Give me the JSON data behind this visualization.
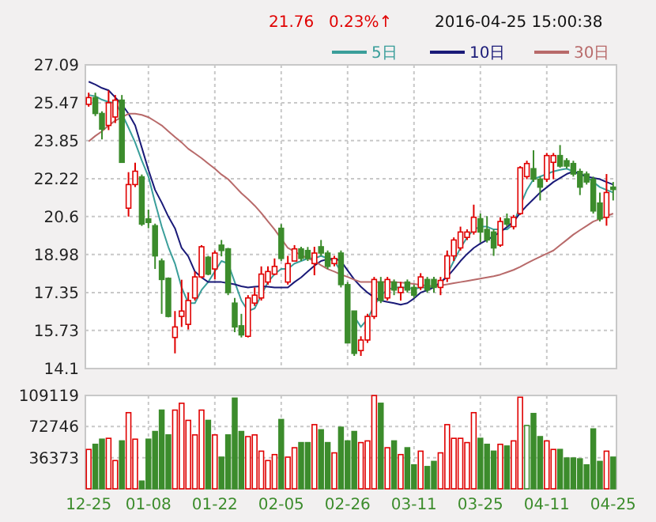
{
  "chart_data": [
    {
      "type": "candlestick",
      "annotations": [
        "21.76",
        "0.23%↑",
        "2016-04-25 15:00:38"
      ],
      "categories": [
        null,
        null,
        null,
        null,
        null,
        null,
        null,
        null,
        null,
        null,
        null,
        null,
        null,
        null,
        null,
        null,
        null,
        null,
        null,
        null,
        null,
        null,
        null,
        null,
        null,
        null,
        null,
        null,
        null,
        null,
        null,
        null,
        null,
        null,
        null,
        null,
        null,
        null,
        null,
        null,
        null,
        null,
        null,
        null,
        null,
        null,
        null,
        null,
        null,
        null,
        null,
        null,
        null,
        null,
        null,
        null,
        null,
        null,
        null,
        null,
        null,
        null,
        null,
        null,
        null,
        null,
        null,
        null,
        null,
        null,
        null,
        null,
        null,
        null,
        null,
        null,
        null,
        null,
        null,
        null
      ],
      "ohlc": [
        [
          25.4,
          25.9,
          25.3,
          25.69
        ],
        [
          25.69,
          25.9,
          24.9,
          25.01
        ],
        [
          25.01,
          25.1,
          23.9,
          24.34
        ],
        [
          24.5,
          26.0,
          24.3,
          25.47
        ],
        [
          24.86,
          25.8,
          24.6,
          25.58
        ],
        [
          25.58,
          25.8,
          22.9,
          22.92
        ],
        [
          20.96,
          22.5,
          20.6,
          21.97
        ],
        [
          21.97,
          22.9,
          21.86,
          22.54
        ],
        [
          22.3,
          22.4,
          20.2,
          20.28
        ],
        [
          20.5,
          20.9,
          20.1,
          20.35
        ],
        [
          20.21,
          20.3,
          18.36,
          18.92
        ],
        [
          18.7,
          18.81,
          16.44,
          17.91
        ],
        [
          17.96,
          18.0,
          16.29,
          16.33
        ],
        [
          15.43,
          16.56,
          14.75,
          15.88
        ],
        [
          16.33,
          17.9,
          15.88,
          16.56
        ],
        [
          15.99,
          17.35,
          15.77,
          17.01
        ],
        [
          17.12,
          18.25,
          17.01,
          18.02
        ],
        [
          18.02,
          19.38,
          17.96,
          19.31
        ],
        [
          18.86,
          18.92,
          18.09,
          18.14
        ],
        [
          18.36,
          19.15,
          17.91,
          19.04
        ],
        [
          19.38,
          19.6,
          18.9,
          19.15
        ],
        [
          19.22,
          19.26,
          17.24,
          17.35
        ],
        [
          16.9,
          17.12,
          15.66,
          15.88
        ],
        [
          15.93,
          16.44,
          15.43,
          15.54
        ],
        [
          15.48,
          17.24,
          15.43,
          17.12
        ],
        [
          16.9,
          17.57,
          16.78,
          17.24
        ],
        [
          17.12,
          18.47,
          17.01,
          18.14
        ],
        [
          17.8,
          18.47,
          17.69,
          18.25
        ],
        [
          18.14,
          18.81,
          18.09,
          18.47
        ],
        [
          20.1,
          20.28,
          18.7,
          18.81
        ],
        [
          17.8,
          18.92,
          17.69,
          18.59
        ],
        [
          18.7,
          19.38,
          18.7,
          19.22
        ],
        [
          19.22,
          19.31,
          18.7,
          18.81
        ],
        [
          19.15,
          19.3,
          18.7,
          18.81
        ],
        [
          18.59,
          19.31,
          18.09,
          19.04
        ],
        [
          19.31,
          19.6,
          18.92,
          19.04
        ],
        [
          19.04,
          19.15,
          18.36,
          18.47
        ],
        [
          18.59,
          18.92,
          18.47,
          18.81
        ],
        [
          19.04,
          19.15,
          17.57,
          17.69
        ],
        [
          17.69,
          17.8,
          15.2,
          15.2
        ],
        [
          16.56,
          16.56,
          14.64,
          14.75
        ],
        [
          14.87,
          15.48,
          14.64,
          15.32
        ],
        [
          15.32,
          16.44,
          15.2,
          16.33
        ],
        [
          16.33,
          18.02,
          16.22,
          17.91
        ],
        [
          17.8,
          18.02,
          16.9,
          17.01
        ],
        [
          17.12,
          18.02,
          17.01,
          17.91
        ],
        [
          17.8,
          17.91,
          17.24,
          17.46
        ],
        [
          17.35,
          17.8,
          17.01,
          17.57
        ],
        [
          17.8,
          17.91,
          17.35,
          17.46
        ],
        [
          17.57,
          17.69,
          17.12,
          17.24
        ],
        [
          17.57,
          18.18,
          17.46,
          18.02
        ],
        [
          17.91,
          18.02,
          17.35,
          17.46
        ],
        [
          17.91,
          18.02,
          17.35,
          17.57
        ],
        [
          17.57,
          18.02,
          17.24,
          17.87
        ],
        [
          17.96,
          19.15,
          17.8,
          18.92
        ],
        [
          18.92,
          19.71,
          18.7,
          19.6
        ],
        [
          19.26,
          20.17,
          19.15,
          19.94
        ],
        [
          19.71,
          20.05,
          19.6,
          19.94
        ],
        [
          19.94,
          21.11,
          19.83,
          20.57
        ],
        [
          20.51,
          20.73,
          19.49,
          19.94
        ],
        [
          20.05,
          20.62,
          19.49,
          19.6
        ],
        [
          19.94,
          20.05,
          18.92,
          19.26
        ],
        [
          19.38,
          20.57,
          19.31,
          20.39
        ],
        [
          20.5,
          20.73,
          20.17,
          20.28
        ],
        [
          20.17,
          20.67,
          20.05,
          20.57
        ],
        [
          20.73,
          22.76,
          20.67,
          22.69
        ],
        [
          22.31,
          22.99,
          22.2,
          22.87
        ],
        [
          22.65,
          23.44,
          22.08,
          22.2
        ],
        [
          22.2,
          22.31,
          21.29,
          21.86
        ],
        [
          22.2,
          23.32,
          22.08,
          23.21
        ],
        [
          22.92,
          23.32,
          22.2,
          23.21
        ],
        [
          23.21,
          23.66,
          22.69,
          22.76
        ],
        [
          22.99,
          23.1,
          22.65,
          22.76
        ],
        [
          22.87,
          22.99,
          22.31,
          22.42
        ],
        [
          22.53,
          22.65,
          21.52,
          21.86
        ],
        [
          22.42,
          22.53,
          21.97,
          22.08
        ],
        [
          22.2,
          22.31,
          20.73,
          20.84
        ],
        [
          21.18,
          21.63,
          20.39,
          20.5
        ],
        [
          20.57,
          22.42,
          20.21,
          21.63
        ],
        [
          21.86,
          22.08,
          21.29,
          21.76
        ]
      ],
      "series": [
        {
          "name": "5日",
          "type": "line",
          "color": "#3a9e9a",
          "values": [
            25.8,
            25.75,
            25.6,
            25.5,
            25.47,
            25.0,
            24.4,
            23.77,
            23.0,
            22.31,
            21.2,
            20.17,
            19.3,
            18.59,
            17.57,
            16.9,
            16.9,
            17.46,
            17.8,
            18.25,
            18.7,
            18.59,
            17.8,
            17.01,
            16.56,
            16.67,
            17.24,
            17.8,
            18.14,
            18.36,
            18.36,
            18.59,
            18.7,
            18.81,
            18.81,
            18.92,
            18.81,
            18.7,
            18.25,
            null,
            16.33,
            15.88,
            16.22,
            16.78,
            17.24,
            17.46,
            17.57,
            17.57,
            17.57,
            17.5,
            17.57,
            17.57,
            17.57,
            17.69,
            18.14,
            18.7,
            19.26,
            19.71,
            20.05,
            20.17,
            20.17,
            20.05,
            20.05,
            20.05,
            20.28,
            21.07,
            21.74,
            22.2,
            22.31,
            22.42,
            22.53,
            22.6,
            22.65,
            22.53,
            22.42,
            22.31,
            22.08,
            21.86,
            21.74,
            21.63
          ]
        },
        {
          "name": "10日",
          "type": "line",
          "color": "#1a1a78",
          "values": [
            26.37,
            26.25,
            26.1,
            26.0,
            25.7,
            25.4,
            25.0,
            24.5,
            23.55,
            22.6,
            21.74,
            21.2,
            20.6,
            20.1,
            19.26,
            18.9,
            18.25,
            18.0,
            17.8,
            17.8,
            17.8,
            17.75,
            17.7,
            17.62,
            17.57,
            17.6,
            17.62,
            17.6,
            17.57,
            17.57,
            17.57,
            17.8,
            18.0,
            18.25,
            18.5,
            18.7,
            18.78,
            18.81,
            18.7,
            18.3,
            17.91,
            17.6,
            17.35,
            17.15,
            17.01,
            16.95,
            16.9,
            16.83,
            16.9,
            17.1,
            17.35,
            17.45,
            17.57,
            17.8,
            18.02,
            18.35,
            18.7,
            19.0,
            19.26,
            19.45,
            19.6,
            19.77,
            19.94,
            20.15,
            20.39,
            20.75,
            21.07,
            21.35,
            21.63,
            21.85,
            22.08,
            22.25,
            22.42,
            22.53,
            22.42,
            22.31,
            22.25,
            22.2,
            22.08,
            21.97
          ]
        },
        {
          "name": "30日",
          "type": "line",
          "color": "#b86a6a",
          "values": [
            23.82,
            24.05,
            24.25,
            24.5,
            24.7,
            24.85,
            25.0,
            25.0,
            24.95,
            24.85,
            24.68,
            24.5,
            24.25,
            24.0,
            23.77,
            23.5,
            23.3,
            23.1,
            22.87,
            22.65,
            22.4,
            22.2,
            21.9,
            21.6,
            21.35,
            21.07,
            20.75,
            20.4,
            20.05,
            19.65,
            19.26,
            19.1,
            18.95,
            18.82,
            18.7,
            18.52,
            18.36,
            18.25,
            18.12,
            18.02,
            17.9,
            17.8,
            17.8,
            17.8,
            17.8,
            17.8,
            17.8,
            17.78,
            17.75,
            17.72,
            17.68,
            17.64,
            17.62,
            17.65,
            17.7,
            17.75,
            17.8,
            17.85,
            17.9,
            17.95,
            18.0,
            18.05,
            18.12,
            18.22,
            18.32,
            18.45,
            18.6,
            18.75,
            18.88,
            19.02,
            19.15,
            19.38,
            19.6,
            19.83,
            20.02,
            20.2,
            20.39,
            20.5,
            20.62,
            20.73
          ]
        }
      ],
      "ylim": [
        14.1,
        27.09
      ],
      "yticks": [
        14.1,
        15.73,
        17.35,
        18.98,
        20.6,
        22.22,
        23.85,
        25.47,
        27.09
      ],
      "grid": true,
      "legend": "top right"
    },
    {
      "type": "bar",
      "categories": [
        "12-25",
        null,
        null,
        null,
        null,
        null,
        null,
        null,
        null,
        "01-08",
        null,
        null,
        null,
        null,
        null,
        null,
        null,
        null,
        null,
        "01-22",
        null,
        null,
        null,
        null,
        null,
        null,
        null,
        null,
        null,
        "02-05",
        null,
        null,
        null,
        null,
        null,
        null,
        null,
        null,
        null,
        "02-26",
        null,
        null,
        null,
        null,
        null,
        null,
        null,
        null,
        null,
        "03-11",
        null,
        null,
        null,
        null,
        null,
        null,
        null,
        null,
        null,
        "03-25",
        null,
        null,
        null,
        null,
        null,
        null,
        null,
        null,
        null,
        "04-11",
        null,
        null,
        null,
        null,
        null,
        null,
        null,
        null,
        null,
        "04-25"
      ],
      "values": [
        46000,
        52000,
        58000,
        59000,
        33000,
        56000,
        89000,
        58000,
        9000,
        58000,
        67000,
        92000,
        63000,
        92000,
        100000,
        80000,
        63000,
        92000,
        80000,
        63000,
        37000,
        63000,
        106000,
        67000,
        61000,
        63000,
        44000,
        33000,
        40000,
        81000,
        37000,
        48000,
        54000,
        54000,
        75000,
        69000,
        54000,
        42000,
        72000,
        56000,
        67000,
        54000,
        56000,
        109000,
        100000,
        48000,
        56000,
        40000,
        48000,
        28000,
        44000,
        26000,
        32000,
        42000,
        75000,
        59000,
        59000,
        54000,
        89000,
        59000,
        52000,
        44000,
        52000,
        50000,
        56000,
        107000,
        74000,
        88000,
        61000,
        56000,
        46000,
        46000,
        36000,
        36000,
        35000,
        28000,
        70000,
        32000,
        44000,
        37000
      ],
      "colors": [
        "#e00000",
        "#3c8c2c",
        "#3c8c2c",
        "#e00000",
        "#e00000",
        "#3c8c2c",
        "#e00000",
        "#e00000",
        "#3c8c2c",
        "#3c8c2c",
        "#3c8c2c",
        "#3c8c2c",
        "#3c8c2c",
        "#e00000",
        "#e00000",
        "#e00000",
        "#e00000",
        "#e00000",
        "#3c8c2c",
        "#e00000",
        "#3c8c2c",
        "#3c8c2c",
        "#3c8c2c",
        "#3c8c2c",
        "#e00000",
        "#e00000",
        "#e00000",
        "#e00000",
        "#e00000",
        "#3c8c2c",
        "#e00000",
        "#e00000",
        "#3c8c2c",
        "#3c8c2c",
        "#e00000",
        "#3c8c2c",
        "#3c8c2c",
        "#e00000",
        "#3c8c2c",
        "#3c8c2c",
        "#3c8c2c",
        "#e00000",
        "#e00000",
        "#e00000",
        "#3c8c2c",
        "#e00000",
        "#3c8c2c",
        "#e00000",
        "#3c8c2c",
        "#3c8c2c",
        "#e00000",
        "#3c8c2c",
        "#3c8c2c",
        "#e00000",
        "#e00000",
        "#e00000",
        "#e00000",
        "#e00000",
        "#e00000",
        "#3c8c2c",
        "#3c8c2c",
        "#3c8c2c",
        "#e00000",
        "#3c8c2c",
        "#e00000",
        "#e00000",
        "#3c8c2c",
        "#3c8c2c",
        "#3c8c2c",
        "#e00000",
        "#e00000",
        "#3c8c2c",
        "#3c8c2c",
        "#3c8c2c",
        "#3c8c2c",
        "#3c8c2c",
        "#3c8c2c",
        "#3c8c2c",
        "#e00000",
        "#3c8c2c"
      ],
      "ylim": [
        0,
        109119
      ],
      "yticks": [
        36373,
        72746,
        109119
      ],
      "grid": true
    }
  ]
}
